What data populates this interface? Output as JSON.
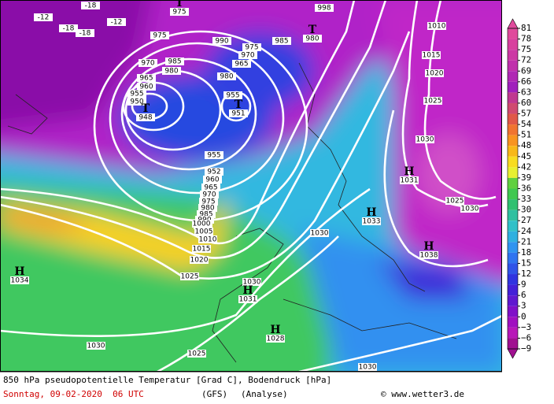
{
  "footer": {
    "line1": "850 hPa pseudopotentielle Temperatur [Grad C], Bodendruck [hPa]",
    "date": "Sonntag, 09-02-2020  06 UTC",
    "model": "(GFS)",
    "run": "(Analyse)",
    "credit": "© www.wetter3.de"
  },
  "colorbar": {
    "ticks": [
      81,
      78,
      75,
      72,
      69,
      66,
      63,
      60,
      57,
      54,
      51,
      48,
      45,
      42,
      39,
      36,
      33,
      30,
      27,
      24,
      21,
      18,
      15,
      12,
      9,
      6,
      3,
      0,
      {
        "value": -3,
        "label": "−3"
      },
      {
        "value": -6,
        "label": "−6"
      },
      {
        "value": -9,
        "label": "−9"
      }
    ],
    "colors": [
      "#e04a9c",
      "#d8409e",
      "#cc38a4",
      "#c030ac",
      "#b028b4",
      "#a020bc",
      "#c03890",
      "#d04a70",
      "#e05848",
      "#f07430",
      "#f89420",
      "#f8b818",
      "#f8dc20",
      "#e8f030",
      "#60d040",
      "#40c850",
      "#30c070",
      "#30c0a0",
      "#30c0c8",
      "#30b0e0",
      "#3094f0",
      "#3074f0",
      "#3054e8",
      "#3034e0",
      "#4420d8",
      "#6018d0",
      "#8010c8",
      "#a010c0",
      "#b818b8",
      "#a01090"
    ]
  },
  "map": {
    "isobar_labels": [
      "975",
      "998",
      "1010",
      "1015",
      "1020",
      "1025",
      "1030",
      "1025",
      "1030",
      "975",
      "990",
      "975",
      "985",
      "970",
      "985",
      "980",
      "970",
      "965",
      "980",
      "965",
      "960",
      "955",
      "950",
      "955",
      "955",
      "952",
      "960",
      "965",
      "970",
      "975",
      "980",
      "985",
      "990",
      "995",
      "1000",
      "1005",
      "1010",
      "1015",
      "1020",
      "1025",
      "1030",
      "1030",
      "1030",
      "1025",
      "1030",
      "-12",
      "-18",
      "-18",
      "-12",
      "-18"
    ],
    "centers": [
      {
        "symbol": "T",
        "value": "948"
      },
      {
        "symbol": "T",
        "value": "951"
      },
      {
        "symbol": "T",
        "value": "980"
      },
      {
        "symbol": "T",
        "value": "975"
      },
      {
        "symbol": "H",
        "value": "1031"
      },
      {
        "symbol": "H",
        "value": "1033"
      },
      {
        "symbol": "H",
        "value": "1038"
      },
      {
        "symbol": "H",
        "value": "1034"
      },
      {
        "symbol": "H",
        "value": "1031"
      },
      {
        "symbol": "H",
        "value": "1028"
      }
    ]
  }
}
